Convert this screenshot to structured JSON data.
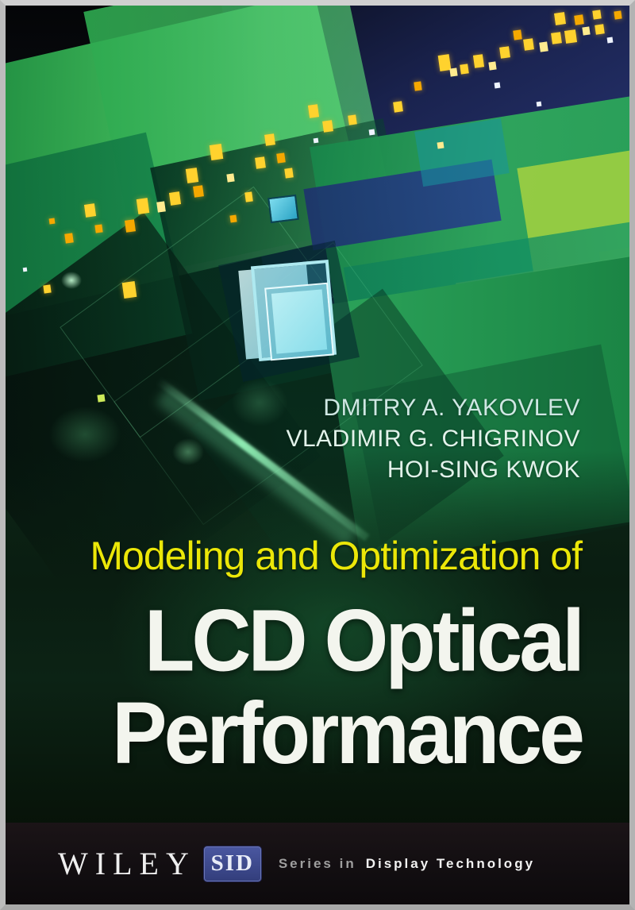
{
  "cover": {
    "authors": [
      "DMITRY A. YAKOVLEV",
      "VLADIMIR G. CHIGRINOV",
      "HOI-SING KWOK"
    ],
    "title_kicker": "Modeling and Optimization of",
    "title_lines": [
      "LCD Optical",
      "Performance"
    ],
    "brand": {
      "publisher": "WILEY",
      "series_logo": "SID",
      "series_prefix": "Series in",
      "series_name": "Display Technology"
    },
    "colors": {
      "kicker_yellow": "#ebe708",
      "title_white": "#f3f5ee",
      "sid_blue": "#3a4584",
      "banner_black": "#161114",
      "art_green": "#2fa85c",
      "art_navy": "#202c5e",
      "sparkle_yellow": "#ffd22e",
      "sparkle_orange": "#f5a800",
      "panel_cyan": "#8fdcea"
    }
  }
}
